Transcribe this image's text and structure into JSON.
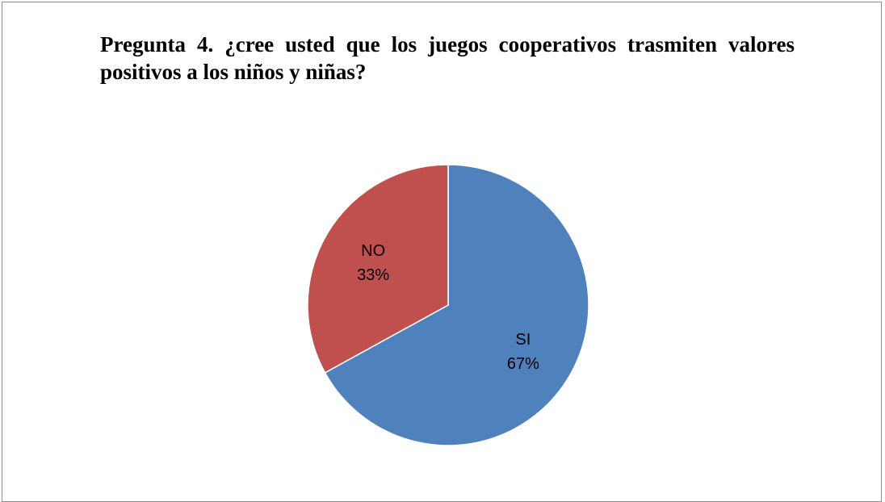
{
  "chart_data": {
    "type": "pie",
    "title": "Pregunta 4. ¿cree usted que los juegos cooperativos trasmiten valores positivos a los niños y niñas?",
    "categories": [
      "SI",
      "NO"
    ],
    "values": [
      67,
      33
    ],
    "units": "%",
    "labels": [
      {
        "name": "SI",
        "percent": "67%"
      },
      {
        "name": "NO",
        "percent": "33%"
      }
    ],
    "colors": [
      "#4F81BD",
      "#C0504D"
    ],
    "legend": "none",
    "start_angle": "12 o'clock",
    "direction": "clockwise"
  }
}
